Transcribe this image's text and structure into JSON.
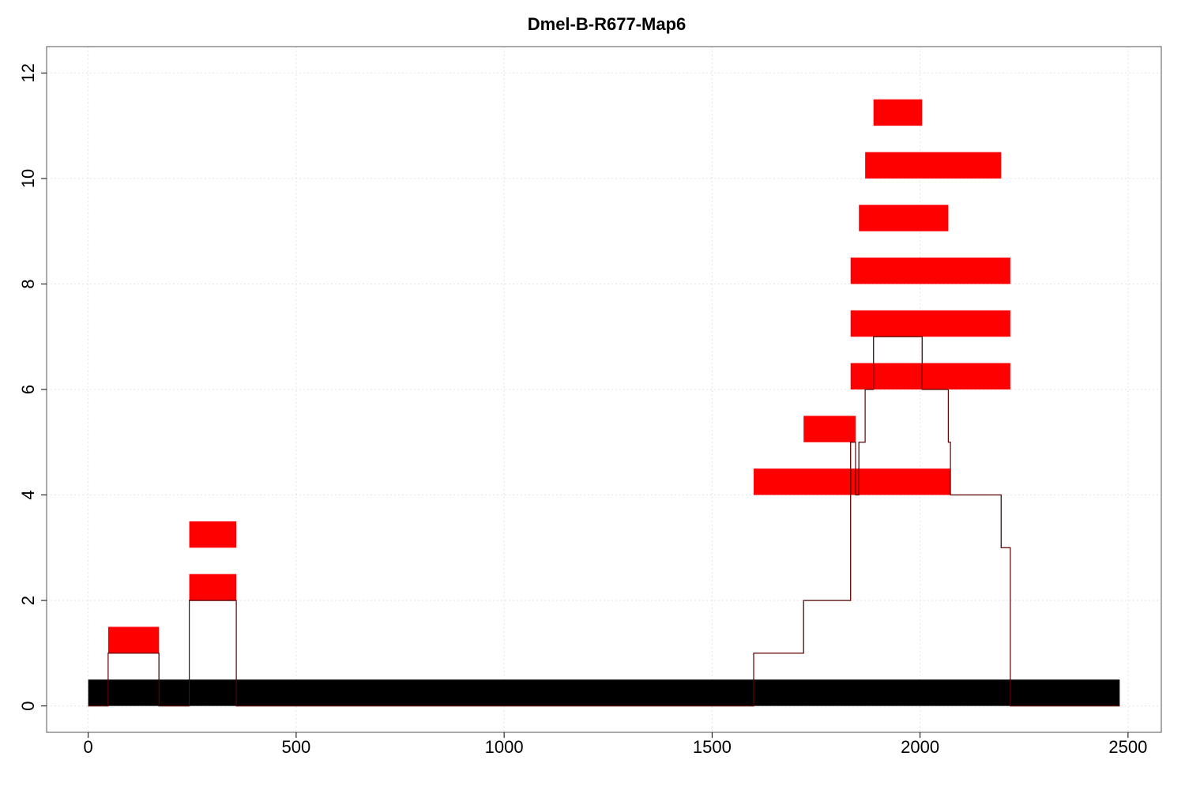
{
  "chart_data": {
    "type": "bar",
    "title": "Dmel-B-R677-Map6",
    "xlabel": "",
    "ylabel": "",
    "xlim": [
      -100,
      2580
    ],
    "ylim": [
      -0.5,
      12.5
    ],
    "x_ticks": [
      0,
      500,
      1000,
      1500,
      2000,
      2500
    ],
    "y_ticks": [
      0,
      2,
      4,
      6,
      8,
      10,
      12
    ],
    "grid": true,
    "reference_bar": {
      "start": 0,
      "end": 2480,
      "y0": 0,
      "y1": 0.5,
      "color": "#000000"
    },
    "segments": [
      {
        "start": 48,
        "end": 170,
        "y": 1
      },
      {
        "start": 243,
        "end": 356,
        "y": 2
      },
      {
        "start": 243,
        "end": 356,
        "y": 3
      },
      {
        "start": 1600,
        "end": 2073,
        "y": 4
      },
      {
        "start": 1720,
        "end": 1845,
        "y": 5
      },
      {
        "start": 1833,
        "end": 2217,
        "y": 6
      },
      {
        "start": 1833,
        "end": 2217,
        "y": 7
      },
      {
        "start": 1833,
        "end": 2217,
        "y": 8
      },
      {
        "start": 1853,
        "end": 2068,
        "y": 9
      },
      {
        "start": 1868,
        "end": 2195,
        "y": 10
      },
      {
        "start": 1888,
        "end": 2005,
        "y": 11
      }
    ],
    "segment_height": 0.5,
    "segment_color": "#ff0000",
    "coverage": [
      [
        0,
        0
      ],
      [
        48,
        0
      ],
      [
        48,
        1
      ],
      [
        170,
        1
      ],
      [
        170,
        0
      ],
      [
        243,
        0
      ],
      [
        243,
        2
      ],
      [
        356,
        2
      ],
      [
        356,
        0
      ],
      [
        1600,
        0
      ],
      [
        1600,
        1
      ],
      [
        1720,
        1
      ],
      [
        1720,
        2
      ],
      [
        1833,
        2
      ],
      [
        1833,
        5
      ],
      [
        1845,
        5
      ],
      [
        1845,
        4
      ],
      [
        1853,
        4
      ],
      [
        1853,
        5
      ],
      [
        1868,
        5
      ],
      [
        1868,
        6
      ],
      [
        1888,
        6
      ],
      [
        1888,
        7
      ],
      [
        2005,
        7
      ],
      [
        2005,
        6
      ],
      [
        2068,
        6
      ],
      [
        2068,
        5
      ],
      [
        2073,
        5
      ],
      [
        2073,
        4
      ],
      [
        2195,
        4
      ],
      [
        2195,
        3
      ],
      [
        2217,
        3
      ],
      [
        2217,
        0
      ],
      [
        2480,
        0
      ]
    ]
  }
}
